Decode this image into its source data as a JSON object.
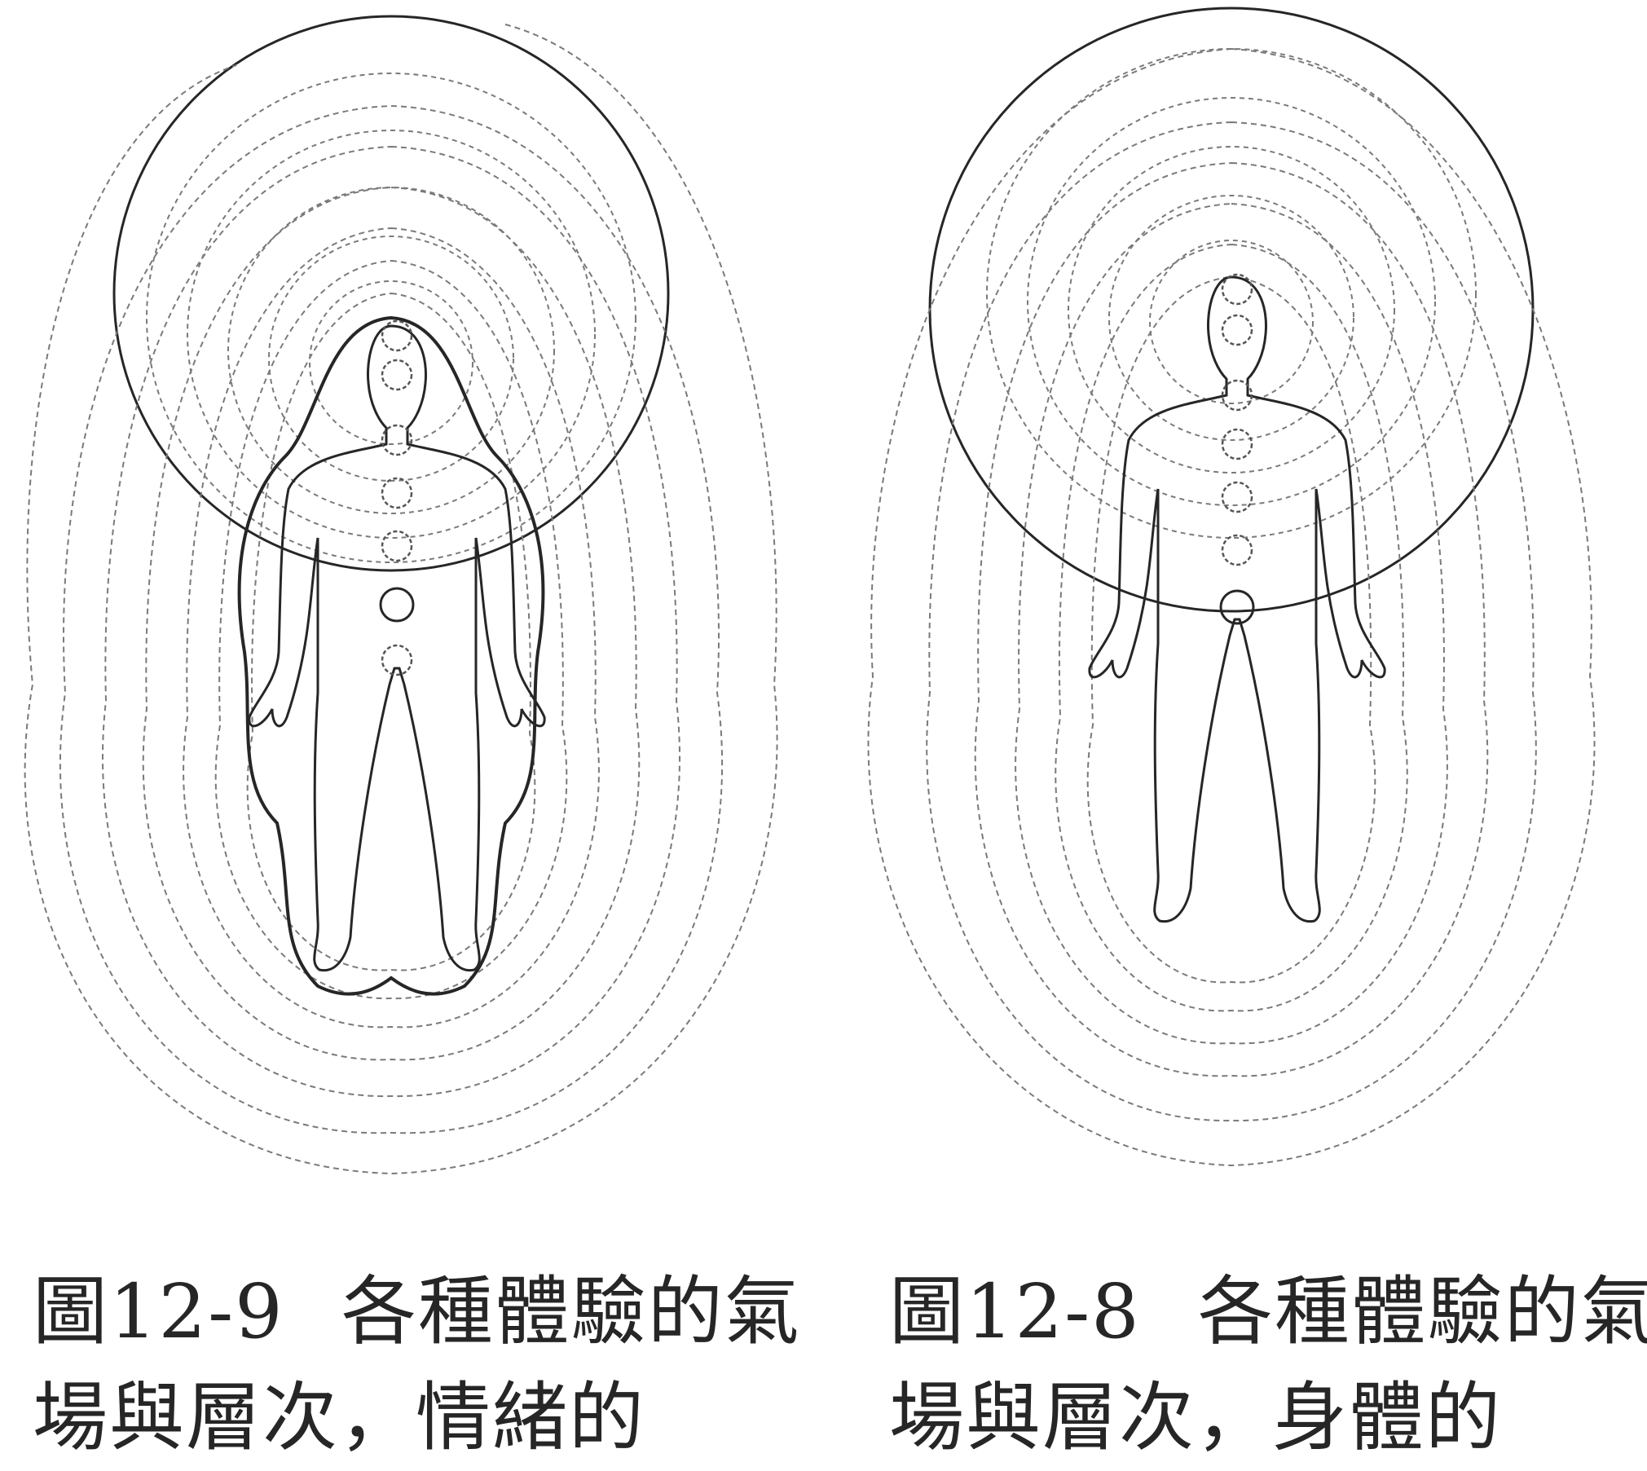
{
  "figures": [
    {
      "id": "fig-12-9",
      "caption": {
        "line1_number": "圖12-9",
        "line1_text": "各種體驗的氣",
        "line2": "場與層次，情緒的"
      }
    },
    {
      "id": "fig-12-8",
      "caption": {
        "line1_number": "圖12-8",
        "line1_text": "各種體驗的氣",
        "line2": "場與層次，身體的"
      }
    }
  ],
  "colors": {
    "ink": "#262626",
    "dash": "#7a7a7a",
    "background": "#ffffff"
  }
}
